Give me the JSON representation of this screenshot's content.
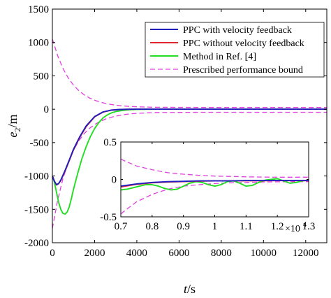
{
  "chart_data": {
    "type": "line",
    "xlabel": "t/s",
    "ylabel": "e",
    "ylabel_sub": "2",
    "ylabel_unit": "/m",
    "xlim": [
      0,
      13000
    ],
    "ylim": [
      -2000,
      1500
    ],
    "xticks": [
      0,
      2000,
      4000,
      6000,
      8000,
      10000,
      12000
    ],
    "xtick_labels": [
      "0",
      "2000",
      "4000",
      "6000",
      "8000",
      "10000",
      "12000"
    ],
    "yticks": [
      -2000,
      -1500,
      -1000,
      -500,
      0,
      500,
      1000,
      1500
    ],
    "ytick_labels": [
      "-2000",
      "-1500",
      "-1000",
      "-500",
      "0",
      "500",
      "1000",
      "1500"
    ],
    "legend_position": "top-right",
    "colors": {
      "ppc_vf": "#1f1fbf",
      "ppc_nvf": "#e3262e",
      "ref4": "#22dd22",
      "bound": "#e040e0"
    },
    "series": [
      {
        "name": "PPC with velocity feedback",
        "color_key": "ppc_vf",
        "style": "solid",
        "x": [
          0,
          100,
          200,
          300,
          400,
          600,
          800,
          1000,
          1300,
          1600,
          2000,
          2400,
          2800,
          3200,
          3600,
          4000,
          5000,
          7000,
          9000,
          11000,
          13000
        ],
        "y": [
          -1000,
          -1080,
          -1130,
          -1110,
          -1060,
          -920,
          -760,
          -600,
          -410,
          -250,
          -110,
          -40,
          -12,
          -4,
          -1,
          0,
          0,
          0,
          0,
          0,
          0
        ]
      },
      {
        "name": "PPC without velocity feedback",
        "color_key": "ppc_nvf",
        "style": "solid",
        "x": [
          0,
          100,
          200,
          300,
          400,
          600,
          800,
          1000,
          1300,
          1600,
          2000,
          2400,
          2800,
          3200,
          3600,
          4000,
          5000,
          7000,
          9000,
          11000,
          13000
        ],
        "y": [
          -1000,
          -1080,
          -1135,
          -1115,
          -1065,
          -930,
          -770,
          -610,
          -420,
          -260,
          -115,
          -42,
          -14,
          -5,
          -1,
          0,
          0,
          0,
          0,
          0,
          0
        ]
      },
      {
        "name": "Method in Ref. [4]",
        "color_key": "ref4",
        "style": "solid",
        "x": [
          0,
          100,
          200,
          300,
          400,
          500,
          600,
          700,
          800,
          900,
          1000,
          1200,
          1400,
          1600,
          1800,
          2000,
          2200,
          2400,
          2600,
          2800,
          3000,
          3300,
          3600,
          4000,
          5000,
          7000,
          9000,
          11000,
          13000
        ],
        "y": [
          -1000,
          -1100,
          -1250,
          -1400,
          -1500,
          -1560,
          -1570,
          -1540,
          -1460,
          -1340,
          -1200,
          -960,
          -740,
          -560,
          -410,
          -290,
          -200,
          -130,
          -85,
          -55,
          -35,
          -18,
          -8,
          -3,
          0,
          0,
          0,
          0,
          0
        ]
      },
      {
        "name": "Prescribed performance bound",
        "color_key": "bound",
        "style": "dashed",
        "x": [
          0,
          250,
          500,
          750,
          1000,
          1250,
          1500,
          1750,
          2000,
          2250,
          2500,
          2750,
          3000,
          3250,
          3500,
          3750,
          4000,
          4500,
          5000,
          6000,
          7000,
          9000,
          11000,
          13000
        ],
        "y": [
          1050,
          801,
          612,
          469,
          361,
          279,
          217,
          170,
          135,
          108,
          88,
          73,
          61,
          52,
          45,
          40,
          37,
          32,
          29,
          28,
          27,
          27,
          27,
          27
        ],
        "mirror": true
      }
    ],
    "inset": {
      "xlim": [
        0.7,
        1.3
      ],
      "ylim": [
        -0.5,
        0.5
      ],
      "xticks": [
        0.7,
        0.8,
        0.9,
        1,
        1.1,
        1.2,
        1.3
      ],
      "xtick_labels": [
        "0.7",
        "0.8",
        "0.9",
        "1",
        "1.1",
        "1.2",
        "1.3"
      ],
      "yticks": [
        -0.5,
        0,
        0.5
      ],
      "ytick_labels": [
        "-0.5",
        "0",
        "0.5"
      ],
      "x_multiplier": "×10",
      "x_multiplier_exp": "4",
      "series": [
        {
          "color_key": "ppc_vf",
          "style": "solid",
          "x": [
            0.7,
            0.75,
            0.8,
            0.85,
            0.9,
            0.95,
            1.0,
            1.05,
            1.1,
            1.15,
            1.2,
            1.25,
            1.3
          ],
          "y": [
            -0.09,
            -0.06,
            -0.04,
            -0.03,
            -0.025,
            -0.02,
            -0.02,
            -0.02,
            -0.015,
            -0.015,
            -0.015,
            -0.015,
            -0.015
          ]
        },
        {
          "color_key": "ppc_nvf",
          "style": "solid",
          "x": [
            0.7,
            0.75,
            0.8,
            0.85,
            0.9,
            0.95,
            1.0,
            1.05,
            1.1,
            1.15,
            1.2,
            1.25,
            1.3
          ],
          "y": [
            -0.1,
            -0.065,
            -0.045,
            -0.035,
            -0.028,
            -0.022,
            -0.02,
            -0.02,
            -0.018,
            -0.017,
            -0.016,
            -0.016,
            -0.016
          ]
        },
        {
          "color_key": "ref4",
          "style": "solid",
          "x": [
            0.7,
            0.72,
            0.74,
            0.76,
            0.78,
            0.8,
            0.82,
            0.84,
            0.86,
            0.88,
            0.9,
            0.92,
            0.94,
            0.96,
            0.98,
            1.0,
            1.02,
            1.04,
            1.06,
            1.08,
            1.1,
            1.12,
            1.14,
            1.16,
            1.18,
            1.2,
            1.22,
            1.24,
            1.26,
            1.28,
            1.3
          ],
          "y": [
            -0.14,
            -0.13,
            -0.11,
            -0.09,
            -0.07,
            -0.07,
            -0.09,
            -0.12,
            -0.14,
            -0.13,
            -0.09,
            -0.05,
            -0.03,
            -0.04,
            -0.07,
            -0.09,
            -0.07,
            -0.03,
            -0.02,
            -0.05,
            -0.09,
            -0.08,
            -0.04,
            -0.01,
            0.0,
            0.01,
            -0.02,
            -0.05,
            -0.04,
            -0.02,
            -0.01
          ]
        },
        {
          "color_key": "bound",
          "style": "dashed",
          "x": [
            0.7,
            0.75,
            0.8,
            0.85,
            0.9,
            0.95,
            1.0,
            1.05,
            1.1,
            1.15,
            1.2,
            1.25,
            1.3
          ],
          "y": [
            0.27,
            0.18,
            0.13,
            0.09,
            0.07,
            0.055,
            0.045,
            0.04,
            0.035,
            0.032,
            0.03,
            0.03,
            0.03
          ],
          "mirror_x": [
            0.7,
            0.75,
            0.8,
            0.85,
            0.9,
            0.95,
            1.0,
            1.05,
            1.1,
            1.15,
            1.2,
            1.25,
            1.3
          ],
          "mirror_y": [
            -0.46,
            -0.3,
            -0.2,
            -0.13,
            -0.09,
            -0.07,
            -0.055,
            -0.045,
            -0.04,
            -0.035,
            -0.032,
            -0.03,
            -0.03
          ]
        }
      ]
    }
  }
}
